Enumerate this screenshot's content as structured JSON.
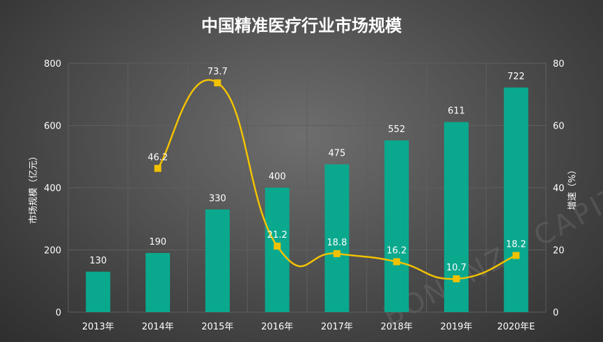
{
  "colors": {
    "bar": "#0aa98e",
    "line": "#f2c200",
    "marker": "#f2c200",
    "grid": "#5e5e5e",
    "text": "#ffffff"
  },
  "watermark": "BONANZA CAPITAL 青松",
  "chart_data": {
    "type": "bar",
    "title": "中国精准医疗行业市场规模",
    "categories": [
      "2013年",
      "2014年",
      "2015年",
      "2016年",
      "2017年",
      "2018年",
      "2019年",
      "2020年E"
    ],
    "series": [
      {
        "name": "",
        "type": "bar",
        "axis": "left",
        "values": [
          130,
          190,
          330,
          400,
          475,
          552,
          611,
          722
        ],
        "labels": [
          "130",
          "190",
          "330",
          "400",
          "475",
          "552",
          "611",
          "722"
        ]
      },
      {
        "name": "",
        "type": "line",
        "axis": "right",
        "values": [
          null,
          46.2,
          73.7,
          21.2,
          18.8,
          16.2,
          10.7,
          18.2
        ],
        "labels": [
          "",
          "46.2",
          "73.7",
          "21.2",
          "18.8",
          "16.2",
          "10.7",
          "18.2"
        ]
      }
    ],
    "ylabel": "市场规模（亿元）",
    "ylabel_right": "增速（%）",
    "ylim": [
      0,
      800
    ],
    "yticks": [
      "0",
      "200",
      "400",
      "600",
      "800"
    ],
    "ylim_right": [
      0,
      80
    ],
    "yticks_right": [
      "0",
      "20",
      "40",
      "60",
      "80"
    ],
    "grid": true,
    "legend": "none"
  }
}
